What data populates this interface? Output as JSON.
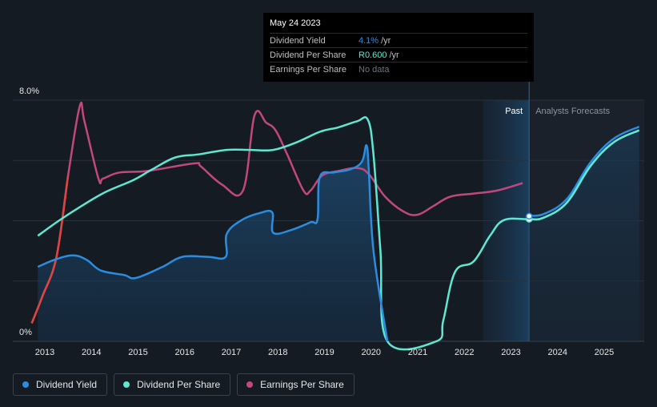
{
  "chart_data": {
    "type": "line",
    "title": "",
    "ylabel": "",
    "ylim": [
      0,
      8
    ],
    "y_ticks": [
      "0%",
      "8.0%"
    ],
    "xlim": [
      2012.7,
      2025.75
    ],
    "x_ticks": [
      "2013",
      "2014",
      "2015",
      "2016",
      "2017",
      "2018",
      "2019",
      "2020",
      "2021",
      "2022",
      "2023",
      "2024",
      "2025"
    ],
    "regions": {
      "past_label": "Past",
      "forecast_label": "Analysts Forecasts",
      "boundary": 2023.39
    },
    "series": [
      {
        "name": "Dividend Yield",
        "unit": "%",
        "color": "#2b8de0",
        "x": [
          2012.85,
          2013.2,
          2013.6,
          2013.9,
          2014.2,
          2014.7,
          2014.95,
          2015.5,
          2015.95,
          2016.5,
          2016.88,
          2016.9,
          2017.2,
          2017.6,
          2017.88,
          2017.9,
          2018.3,
          2018.7,
          2018.85,
          2018.9,
          2019.2,
          2019.55,
          2019.8,
          2019.9,
          2019.95,
          2020.05,
          2020.35
        ],
        "values": [
          2.47,
          2.7,
          2.85,
          2.7,
          2.35,
          2.2,
          2.1,
          2.45,
          2.8,
          2.8,
          2.8,
          3.55,
          4.0,
          4.25,
          4.27,
          3.6,
          3.7,
          3.95,
          4.05,
          5.45,
          5.6,
          5.7,
          5.95,
          6.5,
          5.7,
          3.0,
          0.0
        ]
      },
      {
        "name": "Dividend Per Share",
        "unit": "ZAR",
        "color": "#5ee8d3",
        "x": [
          2012.85,
          2013.3,
          2013.8,
          2014.3,
          2014.9,
          2015.3,
          2015.8,
          2016.3,
          2016.9,
          2017.4,
          2017.9,
          2018.4,
          2018.9,
          2019.3,
          2019.7,
          2019.93,
          2020.05,
          2020.2,
          2020.35,
          2021.4,
          2021.55,
          2021.8,
          2022.2,
          2022.55,
          2022.85,
          2023.39,
          2023.7,
          2024.2,
          2024.7,
          2025.2,
          2025.75
        ],
        "values": [
          3.5,
          4.0,
          4.5,
          4.95,
          5.35,
          5.7,
          6.1,
          6.2,
          6.35,
          6.35,
          6.35,
          6.6,
          6.95,
          7.1,
          7.3,
          7.35,
          6.2,
          3.0,
          0.0,
          0.0,
          0.7,
          2.3,
          2.65,
          3.5,
          4.02,
          4.05,
          4.1,
          4.6,
          5.8,
          6.6,
          7.0
        ]
      },
      {
        "name": "Earnings Per Share",
        "unit": "ZAR",
        "color": "#c2487b",
        "x": [
          2012.72,
          2012.95,
          2013.25,
          2013.5,
          2013.75,
          2013.85,
          2014.15,
          2014.25,
          2014.6,
          2015.2,
          2016.2,
          2016.35,
          2016.8,
          2017.25,
          2017.5,
          2017.75,
          2017.95,
          2018.2,
          2018.55,
          2018.7,
          2018.95,
          2019.3,
          2019.7,
          2019.95,
          2020.3,
          2020.7,
          2021.0,
          2021.35,
          2021.7,
          2022.2,
          2022.7,
          2023.25
        ],
        "values": [
          0.6,
          1.5,
          2.8,
          5.5,
          7.8,
          7.3,
          5.4,
          5.4,
          5.6,
          5.65,
          5.9,
          5.8,
          5.2,
          5.0,
          7.5,
          7.25,
          7.0,
          6.2,
          5.0,
          5.0,
          5.5,
          5.65,
          5.75,
          5.55,
          4.8,
          4.3,
          4.2,
          4.5,
          4.8,
          4.9,
          5.0,
          5.25
        ]
      }
    ],
    "highlight": {
      "date": "May 24 2023",
      "x": 2023.39
    },
    "title_tooltip": {
      "date": "May 24 2023",
      "rows": [
        {
          "label": "Dividend Yield",
          "value": "4.1%",
          "unit": "/yr",
          "color": "#2b8de0"
        },
        {
          "label": "Dividend Per Share",
          "value": "R0.600",
          "unit": "/yr",
          "color": "#5ee8d3"
        },
        {
          "label": "Earnings Per Share",
          "value": "No data",
          "unit": "",
          "color": "#6e747c"
        }
      ]
    },
    "legend": [
      {
        "name": "Dividend Yield",
        "color": "#2b8de0"
      },
      {
        "name": "Dividend Per Share",
        "color": "#5ee8d3"
      },
      {
        "name": "Earnings Per Share",
        "color": "#c2487b"
      }
    ]
  }
}
